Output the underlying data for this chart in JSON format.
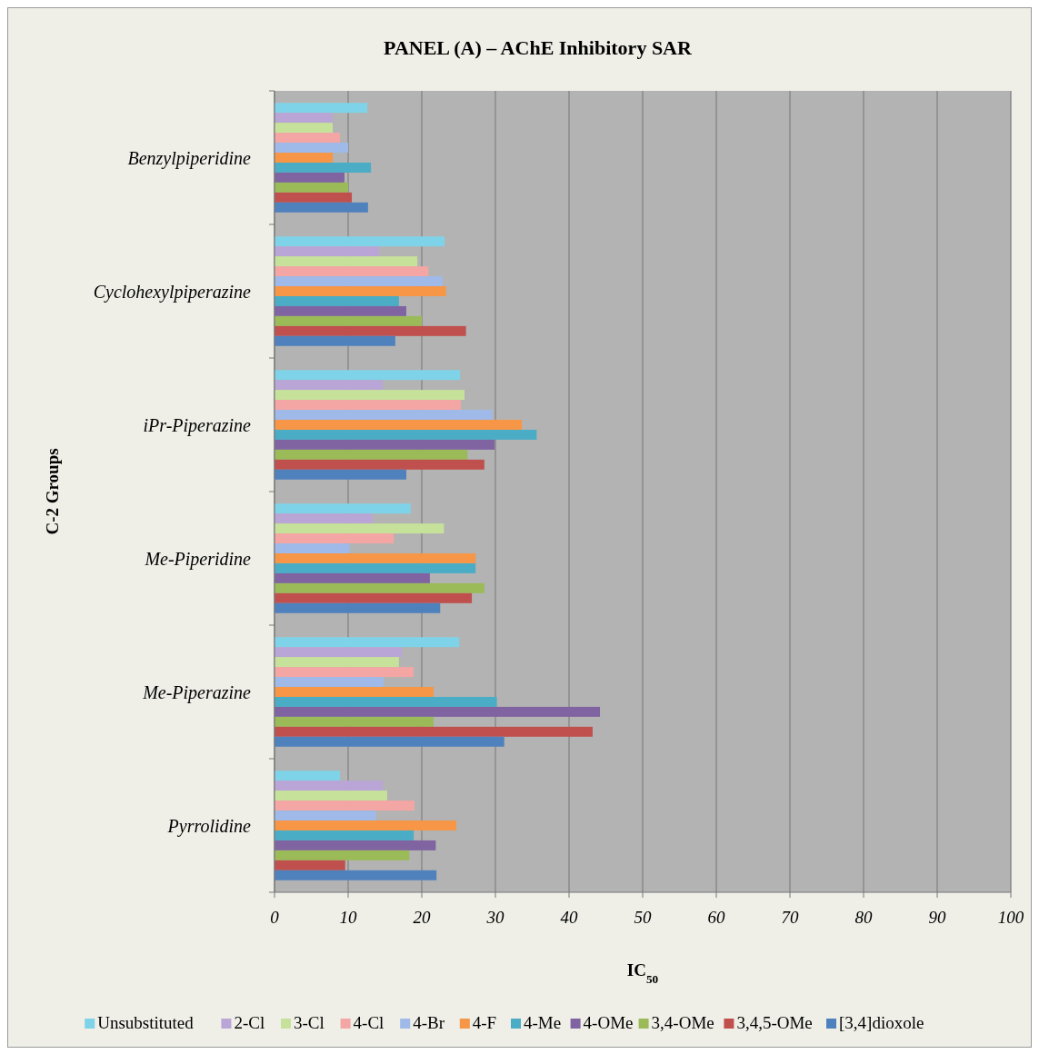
{
  "chart_data": {
    "type": "bar",
    "orientation": "horizontal",
    "title": "PANEL (A) – AChE Inhibitory SAR",
    "xlabel": "IC$_{50}$",
    "ylabel": "C-2 Groups",
    "categories": [
      "Benzylpiperidine",
      "Cyclohexylpiperazine",
      "iPr-Piperazine",
      "Me-Piperidine",
      "Me-Piperazine",
      "Pyrrolidine"
    ],
    "xlim": [
      0,
      100
    ],
    "xticks": [
      0,
      10,
      20,
      30,
      40,
      50,
      60,
      70,
      80,
      90,
      100
    ],
    "grid": "x",
    "legend": "bottom",
    "series": [
      {
        "name": "Unsubstituted",
        "color": "#7fd3e8",
        "values": [
          12.6,
          23.1,
          25.2,
          18.5,
          25.1,
          8.9
        ]
      },
      {
        "name": "2-Cl",
        "color": "#b9a6d6",
        "values": [
          7.9,
          14.2,
          14.7,
          13.3,
          17.3,
          14.7
        ]
      },
      {
        "name": "3-Cl",
        "color": "#c6e29a",
        "values": [
          7.9,
          19.4,
          25.8,
          23.0,
          16.9,
          15.3
        ]
      },
      {
        "name": "4-Cl",
        "color": "#f4a6a4",
        "values": [
          8.9,
          20.9,
          25.3,
          16.2,
          18.9,
          19.0
        ]
      },
      {
        "name": "4-Br",
        "color": "#9fb9e8",
        "values": [
          10.0,
          22.8,
          29.6,
          10.2,
          14.8,
          13.8
        ]
      },
      {
        "name": "4-F",
        "color": "#f79646",
        "values": [
          7.9,
          23.3,
          33.6,
          27.3,
          21.6,
          24.7
        ]
      },
      {
        "name": "4-Me",
        "color": "#4bacc6",
        "values": [
          13.1,
          16.9,
          35.6,
          27.3,
          30.2,
          18.9
        ]
      },
      {
        "name": "4-OMe",
        "color": "#8064a2",
        "values": [
          9.5,
          17.9,
          29.9,
          21.1,
          44.2,
          21.9
        ]
      },
      {
        "name": "3,4-OMe",
        "color": "#9bbb59",
        "values": [
          10.0,
          20.0,
          26.2,
          28.5,
          21.6,
          18.3
        ]
      },
      {
        "name": "3,4,5-OMe",
        "color": "#c0504d",
        "values": [
          10.5,
          26.0,
          28.5,
          26.8,
          43.2,
          9.6
        ]
      },
      {
        "name": "[3,4]dioxole",
        "color": "#4f81bd",
        "values": [
          12.7,
          16.4,
          17.9,
          22.5,
          31.2,
          22.0
        ]
      }
    ]
  }
}
